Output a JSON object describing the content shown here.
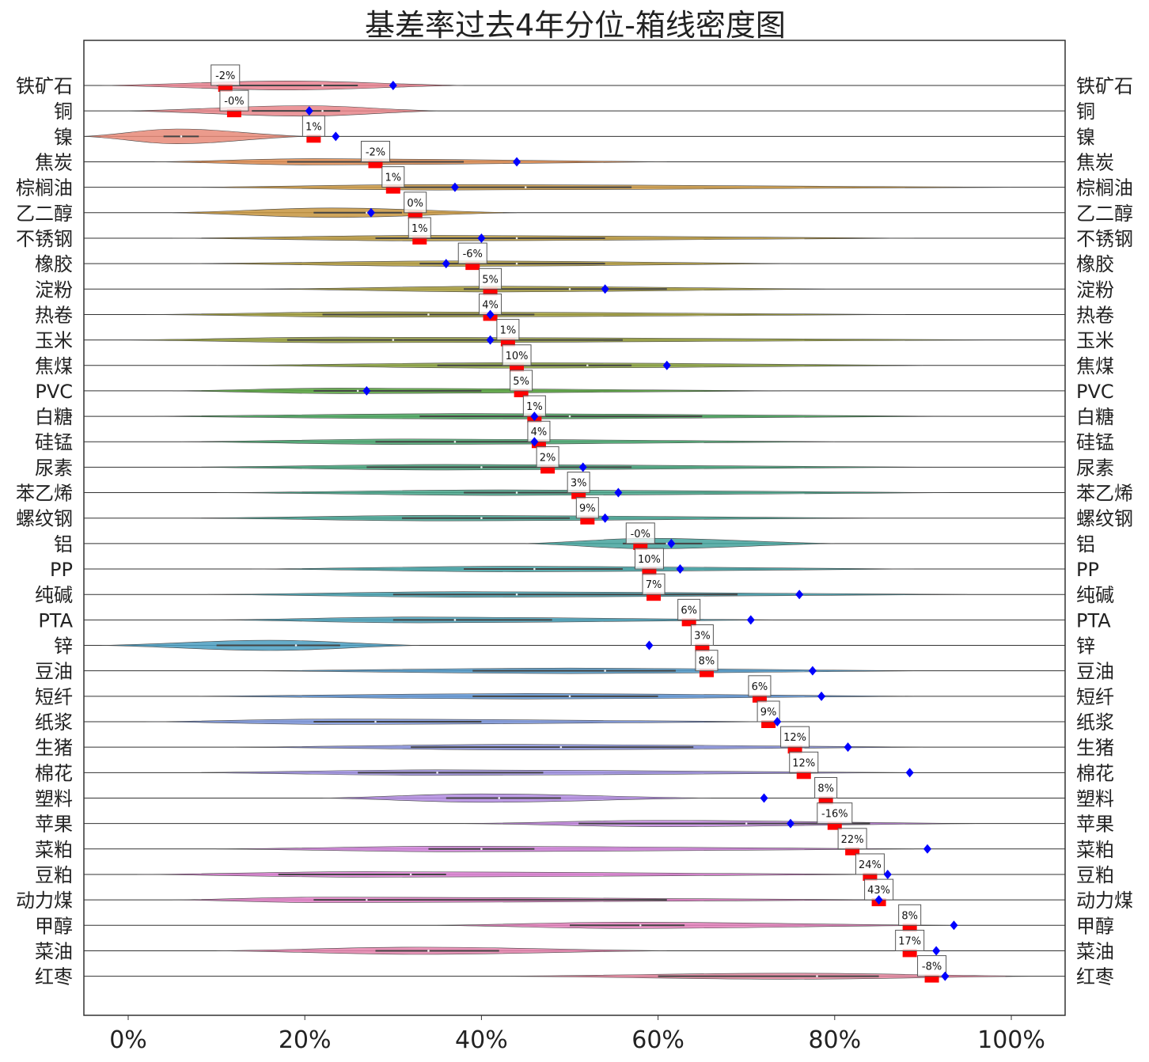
{
  "chart_data": {
    "type": "violin",
    "title": "基差率过去4年分位-箱线密度图",
    "xlim": [
      -0.05,
      1.05
    ],
    "x_ticks": [
      0,
      0.2,
      0.4,
      0.6,
      0.8,
      1.0
    ],
    "x_tick_labels": [
      "0%",
      "20%",
      "40%",
      "60%",
      "80%",
      "100%"
    ],
    "grid": false,
    "markers": {
      "current_percentile": "red bar with percent label",
      "reference": "blue diamond"
    },
    "series": [
      {
        "name": "铁矿石",
        "color": "#e8808f",
        "violin": [
          -0.03,
          0.1,
          0.18,
          0.22,
          0.26,
          0.38
        ],
        "current": 0.11,
        "label": "-2%",
        "diamond": 0.3
      },
      {
        "name": "铜",
        "color": "#e8858a",
        "violin": [
          0.0,
          0.14,
          0.2,
          0.22,
          0.24,
          0.35
        ],
        "current": 0.12,
        "label": "-0%",
        "diamond": 0.205
      },
      {
        "name": "镍",
        "color": "#e88a78",
        "violin": [
          -0.05,
          0.04,
          0.055,
          0.06,
          0.08,
          0.2
        ],
        "current": 0.21,
        "label": "1%",
        "diamond": 0.235
      },
      {
        "name": "焦炭",
        "color": "#df8c50",
        "violin": [
          0.03,
          0.18,
          0.21,
          0.28,
          0.38,
          0.61
        ],
        "current": 0.28,
        "label": "-2%",
        "diamond": 0.44
      },
      {
        "name": "棕榈油",
        "color": "#cd9a45",
        "violin": [
          0.07,
          0.3,
          0.35,
          0.45,
          0.57,
          1.0
        ],
        "current": 0.3,
        "label": "1%",
        "diamond": 0.37
      },
      {
        "name": "乙二醇",
        "color": "#c7953e",
        "violin": [
          0.05,
          0.21,
          0.23,
          0.27,
          0.31,
          0.44
        ],
        "current": 0.325,
        "label": "0%",
        "diamond": 0.275
      },
      {
        "name": "不锈钢",
        "color": "#bb9a3e",
        "violin": [
          0.05,
          0.28,
          0.34,
          0.44,
          0.54,
          0.89
        ],
        "current": 0.33,
        "label": "1%",
        "diamond": 0.4
      },
      {
        "name": "橡胶",
        "color": "#b39b3c",
        "violin": [
          0.07,
          0.33,
          0.38,
          0.44,
          0.54,
          0.75
        ],
        "current": 0.39,
        "label": "-6%",
        "diamond": 0.36
      },
      {
        "name": "淀粉",
        "color": "#a89d3c",
        "violin": [
          0.15,
          0.38,
          0.42,
          0.5,
          0.61,
          0.79
        ],
        "current": 0.41,
        "label": "5%",
        "diamond": 0.54
      },
      {
        "name": "热卷",
        "color": "#a19e3c",
        "violin": [
          0.02,
          0.22,
          0.28,
          0.34,
          0.46,
          0.88
        ],
        "current": 0.41,
        "label": "4%",
        "diamond": 0.41
      },
      {
        "name": "玉米",
        "color": "#98a03c",
        "violin": [
          -0.01,
          0.18,
          0.24,
          0.3,
          0.56,
          1.0
        ],
        "current": 0.43,
        "label": "1%",
        "diamond": 0.41
      },
      {
        "name": "焦煤",
        "color": "#8ba23e",
        "violin": [
          0.1,
          0.35,
          0.44,
          0.52,
          0.57,
          0.9
        ],
        "current": 0.44,
        "label": "10%",
        "diamond": 0.61
      },
      {
        "name": "PVC",
        "color": "#56a43c",
        "violin": [
          0.05,
          0.21,
          0.24,
          0.26,
          0.4,
          0.74
        ],
        "current": 0.445,
        "label": "5%",
        "diamond": 0.27
      },
      {
        "name": "白糖",
        "color": "#49a65d",
        "violin": [
          0.03,
          0.33,
          0.38,
          0.5,
          0.65,
          0.93
        ],
        "current": 0.46,
        "label": "1%",
        "diamond": 0.46
      },
      {
        "name": "硅锰",
        "color": "#47a66f",
        "violin": [
          0.06,
          0.28,
          0.32,
          0.37,
          0.46,
          0.8
        ],
        "current": 0.465,
        "label": "4%",
        "diamond": 0.46
      },
      {
        "name": "尿素",
        "color": "#46a57d",
        "violin": [
          0.06,
          0.27,
          0.36,
          0.4,
          0.57,
          0.91
        ],
        "current": 0.475,
        "label": "2%",
        "diamond": 0.515
      },
      {
        "name": "苯乙烯",
        "color": "#46a58a",
        "violin": [
          0.1,
          0.38,
          0.42,
          0.44,
          0.51,
          0.93
        ],
        "current": 0.51,
        "label": "3%",
        "diamond": 0.555
      },
      {
        "name": "螺纹钢",
        "color": "#45a493",
        "violin": [
          0.07,
          0.31,
          0.36,
          0.4,
          0.5,
          0.84
        ],
        "current": 0.52,
        "label": "9%",
        "diamond": 0.54
      },
      {
        "name": "铝",
        "color": "#44a39d",
        "violin": [
          0.45,
          0.56,
          0.59,
          0.61,
          0.65,
          0.8
        ],
        "current": 0.58,
        "label": "-0%",
        "diamond": 0.615
      },
      {
        "name": "PP",
        "color": "#44a3a6",
        "violin": [
          0.14,
          0.38,
          0.44,
          0.46,
          0.56,
          0.89
        ],
        "current": 0.59,
        "label": "10%",
        "diamond": 0.625
      },
      {
        "name": "纯碱",
        "color": "#46a1b0",
        "violin": [
          0.09,
          0.3,
          0.38,
          0.44,
          0.69,
          0.95
        ],
        "current": 0.595,
        "label": "7%",
        "diamond": 0.76
      },
      {
        "name": "PTA",
        "color": "#48a0b8",
        "violin": [
          0.1,
          0.3,
          0.33,
          0.37,
          0.48,
          0.73
        ],
        "current": 0.635,
        "label": "6%",
        "diamond": 0.705
      },
      {
        "name": "锌",
        "color": "#4a9ec1",
        "violin": [
          -0.03,
          0.1,
          0.16,
          0.19,
          0.24,
          0.33
        ],
        "current": 0.65,
        "label": "3%",
        "diamond": 0.59
      },
      {
        "name": "豆油",
        "color": "#5099c8",
        "violin": [
          0.15,
          0.39,
          0.5,
          0.54,
          0.62,
          0.89
        ],
        "current": 0.655,
        "label": "8%",
        "diamond": 0.775
      },
      {
        "name": "短纤",
        "color": "#6096d6",
        "violin": [
          0.08,
          0.39,
          0.45,
          0.5,
          0.6,
          0.89
        ],
        "current": 0.715,
        "label": "6%",
        "diamond": 0.785
      },
      {
        "name": "纸浆",
        "color": "#7c96dc",
        "violin": [
          0.02,
          0.21,
          0.24,
          0.28,
          0.4,
          0.73
        ],
        "current": 0.725,
        "label": "9%",
        "diamond": 0.735
      },
      {
        "name": "生猪",
        "color": "#8c95e0",
        "violin": [
          0.12,
          0.32,
          0.45,
          0.49,
          0.64,
          0.9
        ],
        "current": 0.755,
        "label": "12%",
        "diamond": 0.815
      },
      {
        "name": "棉花",
        "color": "#9e8fe0",
        "violin": [
          0.07,
          0.26,
          0.35,
          0.35,
          0.47,
          0.88
        ],
        "current": 0.765,
        "label": "12%",
        "diamond": 0.885
      },
      {
        "name": "塑料",
        "color": "#b18be0",
        "violin": [
          0.22,
          0.36,
          0.4,
          0.42,
          0.49,
          0.66
        ],
        "current": 0.79,
        "label": "8%",
        "diamond": 0.72
      },
      {
        "name": "苹果",
        "color": "#c287de",
        "violin": [
          0.38,
          0.51,
          0.6,
          0.7,
          0.84,
          0.96
        ],
        "current": 0.8,
        "label": "-16%",
        "diamond": 0.75
      },
      {
        "name": "菜粕",
        "color": "#d182db",
        "violin": [
          0.1,
          0.34,
          0.37,
          0.4,
          0.46,
          0.89
        ],
        "current": 0.82,
        "label": "22%",
        "diamond": 0.905
      },
      {
        "name": "豆粕",
        "color": "#dc7fd2",
        "violin": [
          0.01,
          0.17,
          0.27,
          0.32,
          0.36,
          0.86
        ],
        "current": 0.84,
        "label": "24%",
        "diamond": 0.86
      },
      {
        "name": "动力煤",
        "color": "#e07ec6",
        "violin": [
          0.05,
          0.21,
          0.22,
          0.27,
          0.61,
          0.88
        ],
        "current": 0.85,
        "label": "43%",
        "diamond": 0.85
      },
      {
        "name": "甲醇",
        "color": "#e27fba",
        "violin": [
          0.35,
          0.5,
          0.56,
          0.58,
          0.63,
          0.93
        ],
        "current": 0.885,
        "label": "8%",
        "diamond": 0.935
      },
      {
        "name": "菜油",
        "color": "#e582ad",
        "violin": [
          0.1,
          0.28,
          0.33,
          0.34,
          0.42,
          0.61
        ],
        "current": 0.885,
        "label": "17%",
        "diamond": 0.915
      },
      {
        "name": "红枣",
        "color": "#e5869f",
        "violin": [
          0.42,
          0.6,
          0.75,
          0.78,
          0.85,
          1.03
        ],
        "current": 0.91,
        "label": "-8%",
        "diamond": 0.925
      }
    ]
  }
}
